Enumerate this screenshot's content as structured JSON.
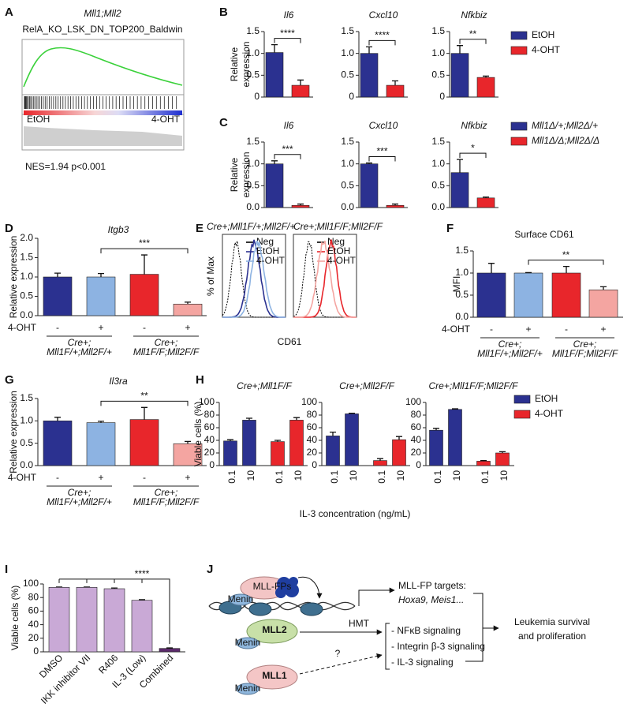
{
  "panel_labels": [
    "A",
    "B",
    "C",
    "D",
    "E",
    "F",
    "G",
    "H",
    "I",
    "J"
  ],
  "gsea": {
    "title": "Mll1;Mll2",
    "subtitle": "RelA_KO_LSK_DN_TOP200_Baldwin",
    "left_label": "EtOH",
    "right_label": "4-OHT",
    "statistics": "NES=1.94   p<0.001"
  },
  "legends": [
    {
      "items": [
        {
          "name": "EtOH",
          "color": "#2b3190"
        },
        {
          "name": "4-OHT",
          "color": "#e8262b"
        }
      ]
    },
    {
      "items": [
        {
          "name": "Mll1Δ/+;Mll2Δ/+",
          "color": "#2b3190"
        },
        {
          "name": "Mll1Δ/Δ;Mll2Δ/Δ",
          "color": "#e8262b"
        }
      ]
    },
    {
      "items": [
        {
          "name": "EtOH",
          "color": "#2b3190"
        },
        {
          "name": "4-OHT",
          "color": "#e8262b"
        }
      ]
    }
  ],
  "flow": {
    "ylabel": "% of Max",
    "xlabel": "CD61",
    "panels": [
      {
        "title": "Cre+;Mll1F/+;Mll2F/+",
        "legend": [
          "Neg",
          "EtOH",
          "4-OHT"
        ],
        "colors": [
          "#000000",
          "#2b3190",
          "#8db3e2"
        ]
      },
      {
        "title": "Cre+;Mll1F/F;Mll2F/F",
        "legend": [
          "Neg",
          "EtOH",
          "4-OHT"
        ],
        "colors": [
          "#000000",
          "#e8262b",
          "#f4a5a1"
        ]
      }
    ]
  },
  "chart_data": [
    {
      "type": "bar",
      "title": "Il6",
      "ylabel": [
        "Relative",
        "expression"
      ],
      "values": [
        1.02,
        0.27
      ],
      "errors": [
        0.18,
        0.12
      ],
      "colors": [
        "#2b3190",
        "#e8262b"
      ],
      "ylim": [
        0,
        1.5
      ],
      "yticks": [
        0,
        0.5,
        {
          "value": 1,
          "label": "1.0"
        },
        1.5
      ],
      "significance": "****"
    },
    {
      "type": "bar",
      "title": "Cxcl10",
      "values": [
        1.0,
        0.27
      ],
      "errors": [
        0.15,
        0.1
      ],
      "colors": [
        "#2b3190",
        "#e8262b"
      ],
      "ylim": [
        0,
        1.5
      ],
      "yticks": [
        0,
        0.5,
        {
          "value": 1,
          "label": "1.0"
        },
        1.5
      ],
      "significance": "****"
    },
    {
      "type": "bar",
      "title": "Nfkbiz",
      "values": [
        1.0,
        0.45
      ],
      "errors": [
        0.18,
        0.03
      ],
      "colors": [
        "#2b3190",
        "#e8262b"
      ],
      "ylim": [
        0,
        1.5
      ],
      "yticks": [
        0,
        0.5,
        {
          "value": 1,
          "label": "1.0"
        },
        1.5
      ],
      "significance": "**"
    },
    {
      "type": "bar",
      "title": "Il6",
      "ylabel": [
        "Relative",
        "expression"
      ],
      "values": [
        1.0,
        0.05
      ],
      "errors": [
        0.07,
        0.03
      ],
      "colors": [
        "#2b3190",
        "#e8262b"
      ],
      "ylim": [
        0,
        1.5
      ],
      "yticks": [
        {
          "value": 0,
          "label": "0.0"
        },
        0.5,
        {
          "value": 1,
          "label": "1.0"
        },
        1.5
      ],
      "significance": "***"
    },
    {
      "type": "bar",
      "title": "Cxcl10",
      "values": [
        1.0,
        0.05
      ],
      "errors": [
        0.02,
        0.03
      ],
      "colors": [
        "#2b3190",
        "#e8262b"
      ],
      "ylim": [
        0,
        1.5
      ],
      "yticks": [
        {
          "value": 0,
          "label": "0.0"
        },
        0.5,
        {
          "value": 1,
          "label": "1.0"
        },
        1.5
      ],
      "significance": "***"
    },
    {
      "type": "bar",
      "title": "Nfkbiz",
      "values": [
        0.8,
        0.22
      ],
      "errors": [
        0.3,
        0.02
      ],
      "colors": [
        "#2b3190",
        "#e8262b"
      ],
      "ylim": [
        0,
        1.5
      ],
      "yticks": [
        {
          "value": 0,
          "label": "0.0"
        },
        0.5,
        {
          "value": 1,
          "label": "1.0"
        },
        1.5
      ],
      "significance": "*"
    },
    {
      "type": "bar",
      "title": "Itgb3",
      "ylabel": "Relative expression",
      "values": [
        1.0,
        1.0,
        1.07,
        0.3
      ],
      "errors": [
        0.1,
        0.09,
        0.5,
        0.05
      ],
      "colors": [
        "#2b3190",
        "#8db3e2",
        "#e8262b",
        "#f4a5a1"
      ],
      "ylim": [
        0,
        2
      ],
      "yticks": [
        {
          "value": 0,
          "label": "0.0"
        },
        0.5,
        {
          "value": 1,
          "label": "1.0"
        },
        1.5,
        {
          "value": 2,
          "label": "2.0"
        }
      ],
      "categories": [
        "-",
        "+",
        "-",
        "+"
      ],
      "row_label": "4-OHT",
      "groups": [
        [
          "Cre+;",
          "Mll1F/+;Mll2F/+"
        ],
        [
          "Cre+;",
          "Mll1F/F;Mll2F/F"
        ]
      ],
      "significance": "***"
    },
    {
      "type": "bar",
      "title": "Surface CD61",
      "ylabel": "MFI",
      "values": [
        1.0,
        1.0,
        1.0,
        0.62
      ],
      "errors": [
        0.22,
        0.01,
        0.15,
        0.07
      ],
      "colors": [
        "#2b3190",
        "#8db3e2",
        "#e8262b",
        "#f4a5a1"
      ],
      "ylim": [
        0,
        1.5
      ],
      "yticks": [
        {
          "value": 0,
          "label": "0.0"
        },
        0.5,
        {
          "value": 1,
          "label": "1.0"
        },
        1.5
      ],
      "categories": [
        "-",
        "+",
        "-",
        "+"
      ],
      "row_label": "4-OHT",
      "groups": [
        [
          "Cre+;",
          "Mll1F/+;Mll2F/+"
        ],
        [
          "Cre+;",
          "Mll1F/F;Mll2F/F"
        ]
      ],
      "significance": "**"
    },
    {
      "type": "bar",
      "title": "Il3ra",
      "ylabel": "Relative expression",
      "values": [
        1.0,
        0.96,
        1.03,
        0.49
      ],
      "errors": [
        0.08,
        0.03,
        0.27,
        0.05
      ],
      "colors": [
        "#2b3190",
        "#8db3e2",
        "#e8262b",
        "#f4a5a1"
      ],
      "ylim": [
        0,
        1.5
      ],
      "yticks": [
        {
          "value": 0,
          "label": "0.0"
        },
        0.5,
        {
          "value": 1,
          "label": "1.0"
        },
        1.5
      ],
      "categories": [
        "-",
        "+",
        "-",
        "+"
      ],
      "row_label": "4-OHT",
      "groups": [
        [
          "Cre+;",
          "Mll1F/+;Mll2F/+"
        ],
        [
          "Cre+;",
          "Mll1F/F;Mll2F/F"
        ]
      ],
      "significance": "**"
    },
    {
      "type": "bar",
      "title": "Cre+;Mll1F/F",
      "ylabel": "Viable cells (%)",
      "values": [
        39,
        72,
        38,
        72
      ],
      "errors": [
        2,
        3,
        2,
        4
      ],
      "colors": [
        "#2b3190",
        "#2b3190",
        "#e8262b",
        "#e8262b"
      ],
      "ylim": [
        0,
        100
      ],
      "yticks": [
        0,
        20,
        40,
        60,
        80,
        100
      ],
      "categories": [
        "0.1",
        "10",
        "0.1",
        "10"
      ]
    },
    {
      "type": "bar",
      "title": "Cre+;Mll2F/F",
      "xlabel": "IL-3 concentration (ng/mL)",
      "values": [
        47,
        82,
        8,
        41
      ],
      "errors": [
        6,
        1,
        3,
        5
      ],
      "colors": [
        "#2b3190",
        "#2b3190",
        "#e8262b",
        "#e8262b"
      ],
      "ylim": [
        0,
        100
      ],
      "yticks": [
        0,
        20,
        40,
        60,
        80,
        100
      ],
      "categories": [
        "0.1",
        "10",
        "0.1",
        "10"
      ]
    },
    {
      "type": "bar",
      "title": "Cre+;Mll1F/F;Mll2F/F",
      "values": [
        56,
        89,
        7,
        20
      ],
      "errors": [
        3,
        1,
        1,
        2
      ],
      "colors": [
        "#2b3190",
        "#2b3190",
        "#e8262b",
        "#e8262b"
      ],
      "ylim": [
        0,
        100
      ],
      "yticks": [
        0,
        20,
        40,
        60,
        80,
        100
      ],
      "categories": [
        "0.1",
        "10",
        "0.1",
        "10"
      ]
    },
    {
      "type": "bar",
      "ylabel": "Viable cells (%)",
      "values": [
        95,
        95,
        93,
        76,
        5
      ],
      "errors": [
        0.5,
        0.5,
        1,
        0.8,
        0.8
      ],
      "colors": [
        "#c9a9d6",
        "#c9a9d6",
        "#c9a9d6",
        "#c9a9d6",
        "#5b2a6b"
      ],
      "ylim": [
        0,
        100
      ],
      "yticks": [
        0,
        20,
        40,
        60,
        80,
        100
      ],
      "categories": [
        "DMSO",
        "IKK inhibitor VII",
        "R406",
        "IL-3 (Low)",
        "Combined"
      ],
      "significance": "****"
    }
  ],
  "diagram": {
    "mll_fp": "MLL-FPs",
    "menin": "Menin",
    "targets": [
      "MLL-FP targets:",
      "Hoxa9, Meis1..."
    ],
    "mll2": "MLL2",
    "mll1": "MLL1",
    "hmt": "HMT",
    "question": "?",
    "pathways": [
      "- NFκB signaling",
      "- Integrin β-3 signaling",
      "- IL-3 signaling"
    ],
    "outcome": [
      "Leukemia survival",
      "and proliferation"
    ]
  }
}
